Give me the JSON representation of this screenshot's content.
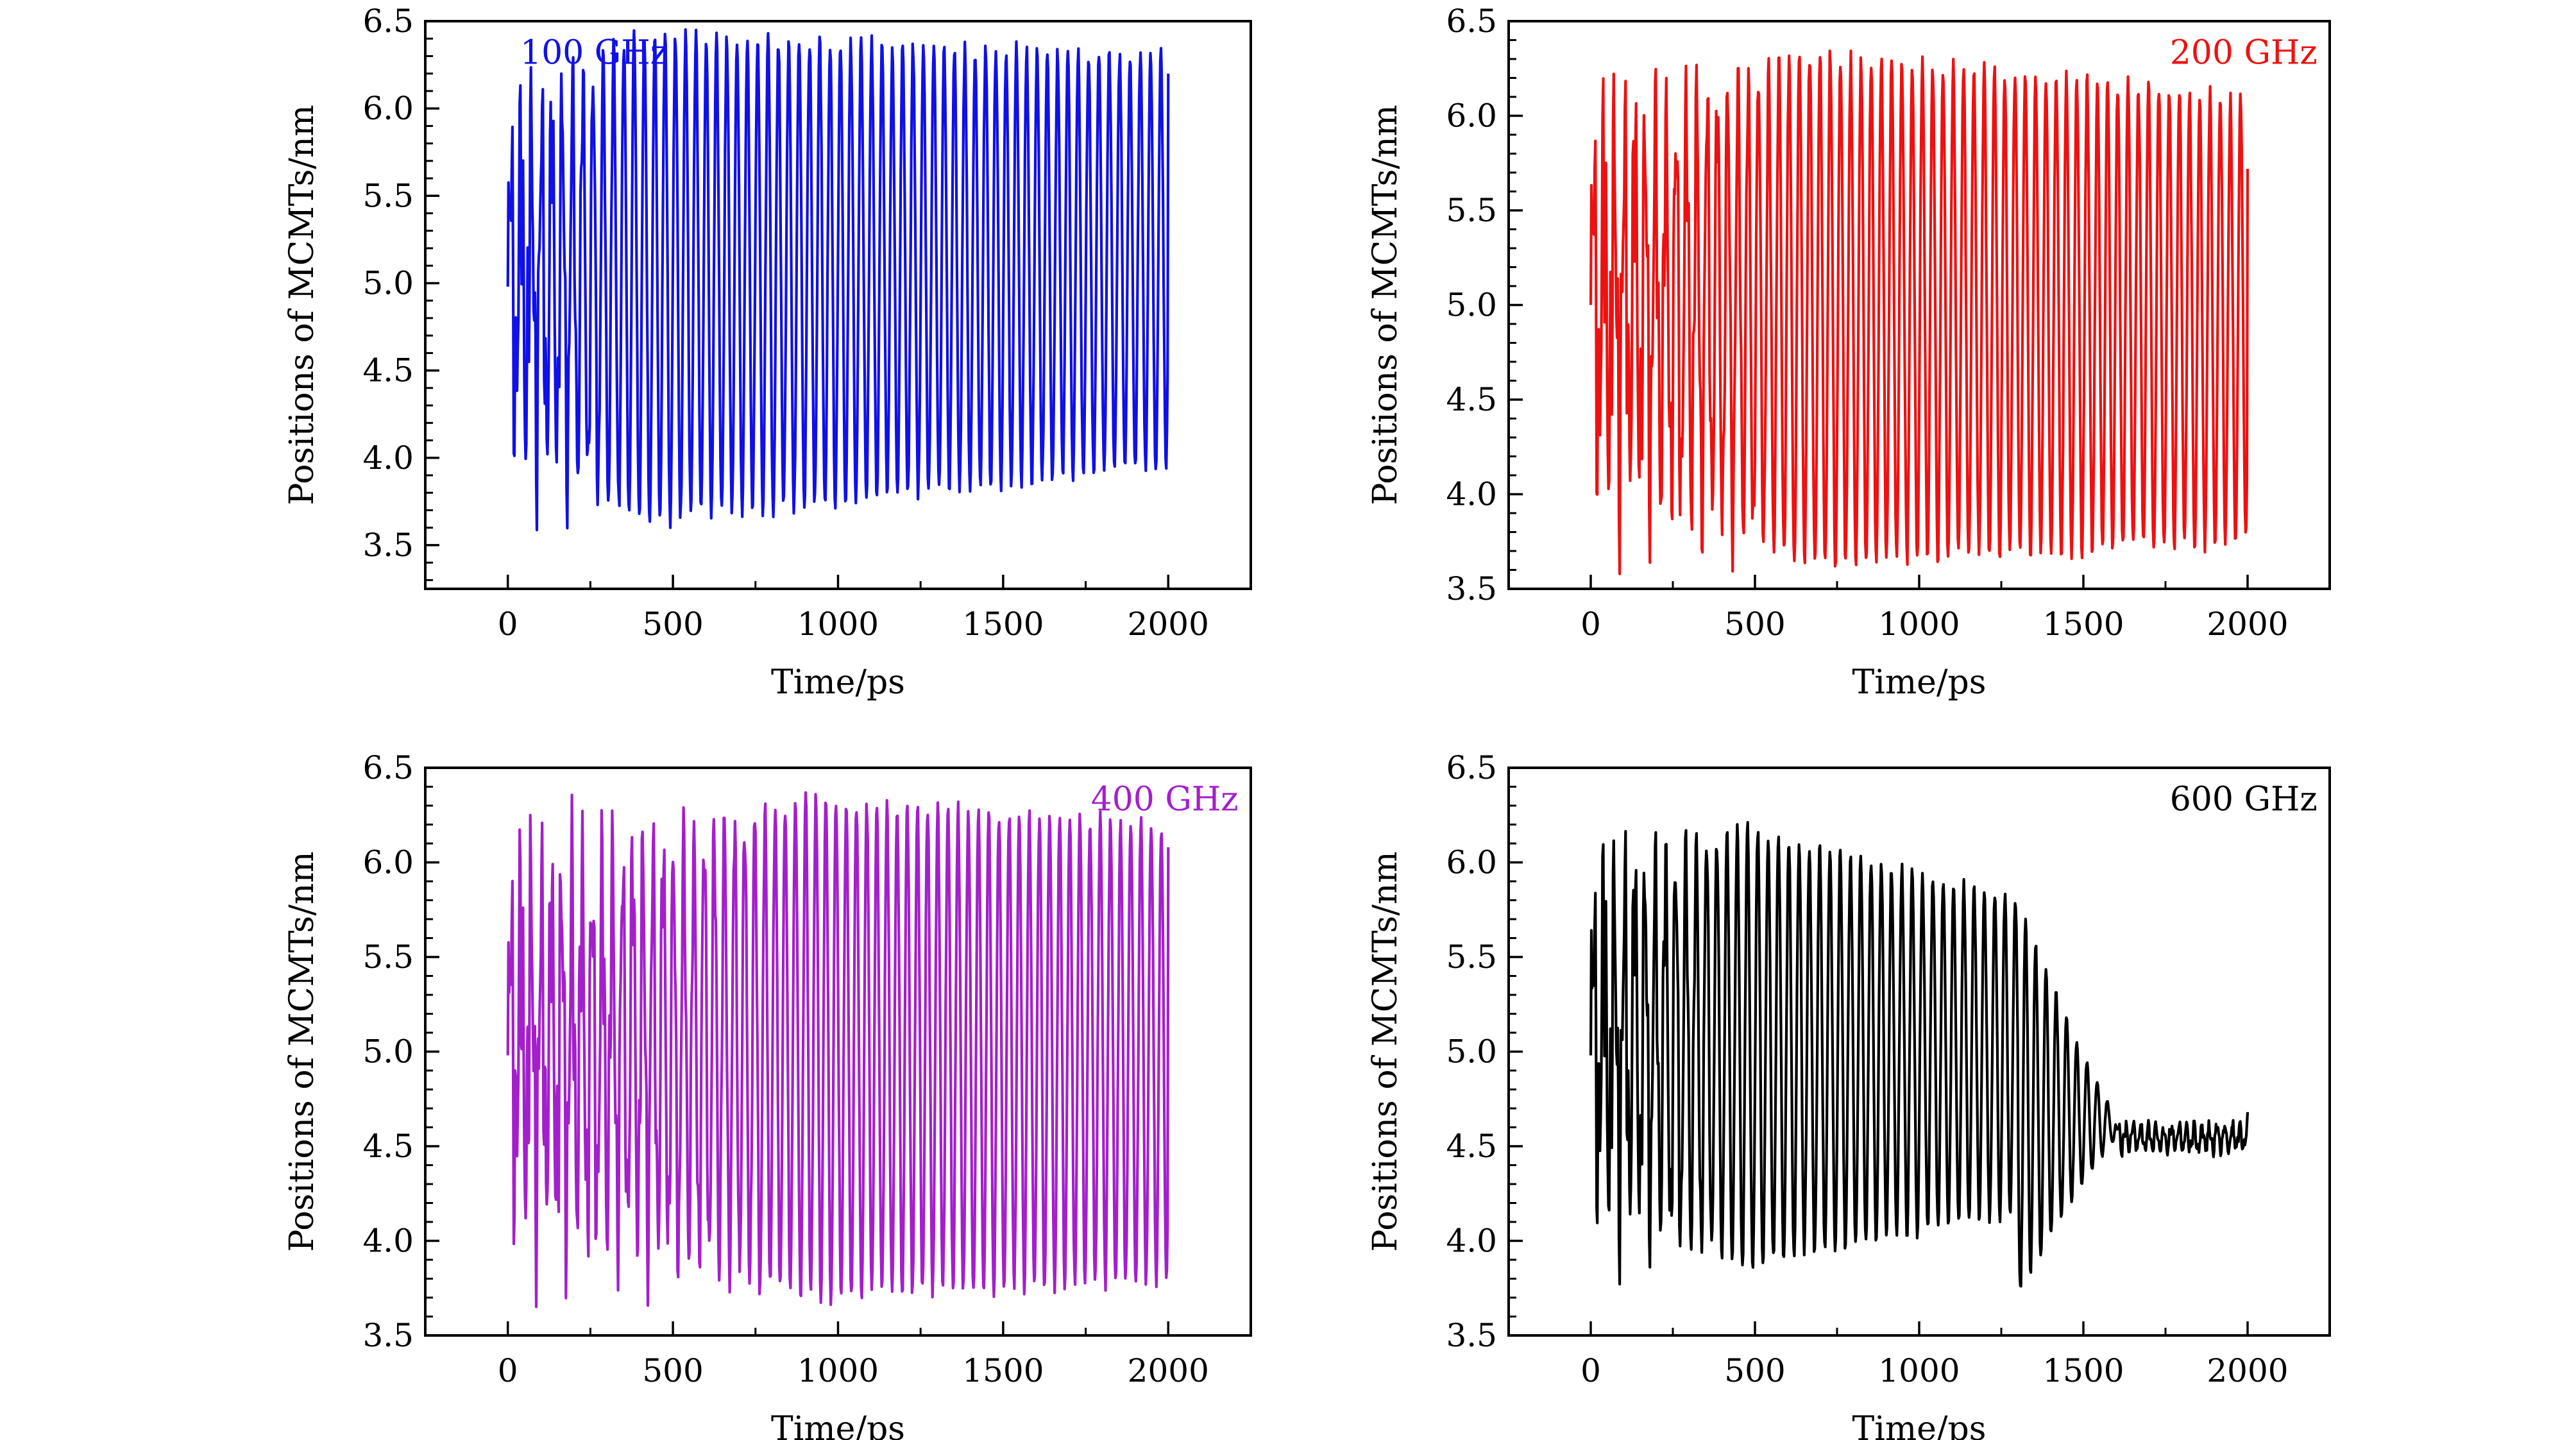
{
  "chart_data": [
    {
      "type": "line",
      "annotation": "100 GHz",
      "xlabel": "Time/ps",
      "ylabel": "Positions of MCMTs/nm",
      "xlim": [
        -250,
        2250
      ],
      "ylim": [
        3.25,
        6.5
      ],
      "xticks": [
        "0",
        "500",
        "1000",
        "1500",
        "2000"
      ],
      "yticks": [
        "3.5",
        "4.0",
        "4.5",
        "5.0",
        "5.5",
        "6.0",
        "6.5"
      ],
      "color": "#1010e8",
      "legend_position": "top-left",
      "series": [
        {
          "x_range": [
            0,
            2000
          ],
          "start_value": 4.98,
          "end_value": 6.2,
          "period_ps": 31.3,
          "upper_envelope": [
            6.45,
            6.3
          ],
          "lower_envelope": [
            3.55,
            3.95
          ],
          "early_irregular_until_ps": 380,
          "decays": false,
          "seed": 11
        }
      ]
    },
    {
      "type": "line",
      "annotation": "200 GHz",
      "xlabel": "Time/ps",
      "ylabel": "Positions of MCMTs/nm",
      "xlim": [
        -250,
        2250
      ],
      "ylim": [
        3.5,
        6.5
      ],
      "xticks": [
        "0",
        "500",
        "1000",
        "1500",
        "2000"
      ],
      "yticks": [
        "3.5",
        "4.0",
        "4.5",
        "5.0",
        "5.5",
        "6.0",
        "6.5"
      ],
      "color": "#ee1111",
      "legend_position": "top-right",
      "series": [
        {
          "x_range": [
            0,
            2000
          ],
          "start_value": 5.0,
          "end_value": 5.72,
          "period_ps": 31.3,
          "upper_envelope": [
            6.45,
            6.1
          ],
          "lower_envelope": [
            3.55,
            3.75
          ],
          "early_irregular_until_ps": 650,
          "decays": false,
          "seed": 23
        }
      ]
    },
    {
      "type": "line",
      "annotation": "400 GHz",
      "xlabel": "Time/ps",
      "ylabel": "Positions of MCMTs/nm",
      "xlim": [
        -250,
        2250
      ],
      "ylim": [
        3.5,
        6.5
      ],
      "xticks": [
        "0",
        "500",
        "1000",
        "1500",
        "2000"
      ],
      "yticks": [
        "3.5",
        "4.0",
        "4.5",
        "5.0",
        "5.5",
        "6.0",
        "6.5"
      ],
      "color": "#a41fcc",
      "legend_position": "top-right",
      "series": [
        {
          "x_range": [
            0,
            2000
          ],
          "start_value": 4.98,
          "end_value": 6.08,
          "period_ps": 30.8,
          "upper_envelope": [
            6.45,
            6.2
          ],
          "lower_envelope": [
            3.6,
            3.8
          ],
          "early_irregular_until_ps": 900,
          "decays": false,
          "seed": 37
        }
      ]
    },
    {
      "type": "line",
      "annotation": "600 GHz",
      "xlabel": "Time/ps",
      "ylabel": "Positions of MCMTs/nm",
      "xlim": [
        -250,
        2250
      ],
      "ylim": [
        3.5,
        6.5
      ],
      "xticks": [
        "0",
        "500",
        "1000",
        "1500",
        "2000"
      ],
      "yticks": [
        "3.5",
        "4.0",
        "4.5",
        "5.0",
        "5.5",
        "6.0",
        "6.5"
      ],
      "color": "#000000",
      "legend_position": "top-right",
      "series": [
        {
          "x_range": [
            0,
            2000
          ],
          "start_value": 4.98,
          "end_value": 4.68,
          "period_ps": 31.3,
          "upper_envelope": [
            6.4,
            5.85
          ],
          "lower_envelope": [
            3.7,
            4.15
          ],
          "early_irregular_until_ps": 450,
          "decays": true,
          "decay_points": [
            [
              1300,
              5.8
            ],
            [
              1480,
              5.05
            ],
            [
              1600,
              4.65
            ],
            [
              2000,
              4.55
            ]
          ],
          "seed": 53
        }
      ]
    }
  ]
}
